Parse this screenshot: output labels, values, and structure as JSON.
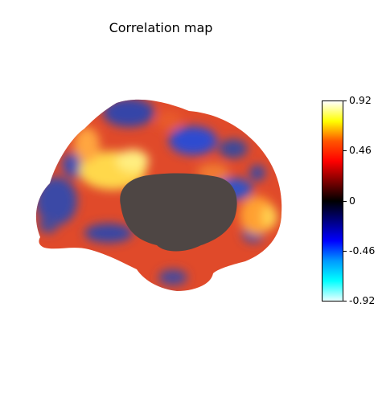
{
  "figure": {
    "title": "Correlation map"
  },
  "colorbar": {
    "ticks": [
      "0.92",
      "0.46",
      "0",
      "-0.46",
      "-0.92"
    ],
    "stops": [
      "#ffffff",
      "#ffff00",
      "#ff5500",
      "#ff0000",
      "#800000",
      "#000000",
      "#000080",
      "#0000ff",
      "#0099ff",
      "#00ffff",
      "#e8ffff"
    ]
  },
  "colors": {
    "medial_wall": "#4e4644",
    "positive_hot": "#ffd54a",
    "positive": "#e8502c",
    "negative": "#3447a8"
  }
}
